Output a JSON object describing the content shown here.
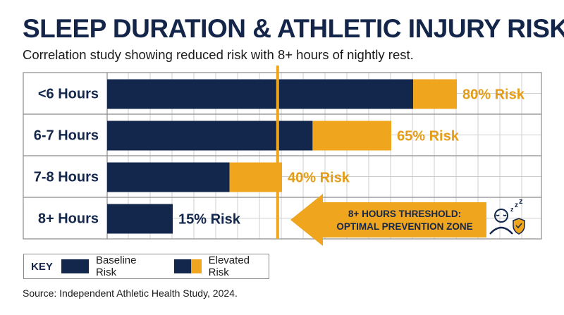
{
  "chart_data": {
    "type": "bar",
    "orientation": "horizontal",
    "stacked": true,
    "title": "SLEEP DURATION & ATHLETIC INJURY RISK",
    "subtitle": "Correlation study showing reduced risk with 8+ hours of nightly rest.",
    "categories": [
      "<6 Hours",
      "6-7 Hours",
      "7-8 Hours",
      "8+ Hours"
    ],
    "series": [
      {
        "name": "Baseline Risk",
        "color": "#13264b",
        "values": [
          70,
          47,
          28,
          15
        ]
      },
      {
        "name": "Elevated Risk",
        "color": "#efa51d",
        "values": [
          10,
          18,
          12,
          0
        ]
      }
    ],
    "totals": [
      80,
      65,
      40,
      15
    ],
    "data_labels": [
      "80% Risk",
      "65% Risk",
      "40% Risk",
      "15% Risk"
    ],
    "xlim": [
      0,
      100
    ],
    "grid": true,
    "threshold": {
      "value": 39,
      "label_line1": "8+ HOURS THRESHOLD:",
      "label_line2": "OPTIMAL PREVENTION ZONE",
      "icon": "sleeping-person-shield-icon"
    },
    "legend": {
      "title": "KEY",
      "position": "bottom-left",
      "items": [
        "Baseline Risk",
        "Elevated Risk"
      ]
    }
  },
  "source": "Source: Independent Athletic Health Study, 2024.",
  "colors": {
    "navy": "#13264b",
    "gold": "#efa51d",
    "label_gold": "#e59c16",
    "grid": "#cfcfcf"
  }
}
